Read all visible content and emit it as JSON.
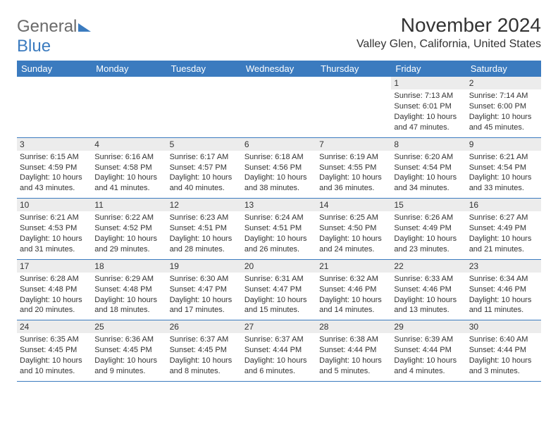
{
  "logo": {
    "word1": "General",
    "word2": "Blue"
  },
  "title": "November 2024",
  "location": "Valley Glen, California, United States",
  "day_headers": [
    "Sunday",
    "Monday",
    "Tuesday",
    "Wednesday",
    "Thursday",
    "Friday",
    "Saturday"
  ],
  "colors": {
    "header_bg": "#3b7bbf",
    "header_text": "#ffffff",
    "cell_text": "#333333",
    "shaded_bg": "#f0f0f0",
    "border": "#3b7bbf"
  },
  "weeks": [
    [
      {
        "empty": true
      },
      {
        "empty": true
      },
      {
        "empty": true
      },
      {
        "empty": true
      },
      {
        "empty": true
      },
      {
        "day": "1",
        "sunrise": "Sunrise: 7:13 AM",
        "sunset": "Sunset: 6:01 PM",
        "daylight": "Daylight: 10 hours and 47 minutes."
      },
      {
        "day": "2",
        "sunrise": "Sunrise: 7:14 AM",
        "sunset": "Sunset: 6:00 PM",
        "daylight": "Daylight: 10 hours and 45 minutes."
      }
    ],
    [
      {
        "day": "3",
        "sunrise": "Sunrise: 6:15 AM",
        "sunset": "Sunset: 4:59 PM",
        "daylight": "Daylight: 10 hours and 43 minutes."
      },
      {
        "day": "4",
        "sunrise": "Sunrise: 6:16 AM",
        "sunset": "Sunset: 4:58 PM",
        "daylight": "Daylight: 10 hours and 41 minutes."
      },
      {
        "day": "5",
        "sunrise": "Sunrise: 6:17 AM",
        "sunset": "Sunset: 4:57 PM",
        "daylight": "Daylight: 10 hours and 40 minutes."
      },
      {
        "day": "6",
        "sunrise": "Sunrise: 6:18 AM",
        "sunset": "Sunset: 4:56 PM",
        "daylight": "Daylight: 10 hours and 38 minutes."
      },
      {
        "day": "7",
        "sunrise": "Sunrise: 6:19 AM",
        "sunset": "Sunset: 4:55 PM",
        "daylight": "Daylight: 10 hours and 36 minutes."
      },
      {
        "day": "8",
        "sunrise": "Sunrise: 6:20 AM",
        "sunset": "Sunset: 4:54 PM",
        "daylight": "Daylight: 10 hours and 34 minutes."
      },
      {
        "day": "9",
        "sunrise": "Sunrise: 6:21 AM",
        "sunset": "Sunset: 4:54 PM",
        "daylight": "Daylight: 10 hours and 33 minutes."
      }
    ],
    [
      {
        "day": "10",
        "sunrise": "Sunrise: 6:21 AM",
        "sunset": "Sunset: 4:53 PM",
        "daylight": "Daylight: 10 hours and 31 minutes."
      },
      {
        "day": "11",
        "sunrise": "Sunrise: 6:22 AM",
        "sunset": "Sunset: 4:52 PM",
        "daylight": "Daylight: 10 hours and 29 minutes."
      },
      {
        "day": "12",
        "sunrise": "Sunrise: 6:23 AM",
        "sunset": "Sunset: 4:51 PM",
        "daylight": "Daylight: 10 hours and 28 minutes."
      },
      {
        "day": "13",
        "sunrise": "Sunrise: 6:24 AM",
        "sunset": "Sunset: 4:51 PM",
        "daylight": "Daylight: 10 hours and 26 minutes."
      },
      {
        "day": "14",
        "sunrise": "Sunrise: 6:25 AM",
        "sunset": "Sunset: 4:50 PM",
        "daylight": "Daylight: 10 hours and 24 minutes."
      },
      {
        "day": "15",
        "sunrise": "Sunrise: 6:26 AM",
        "sunset": "Sunset: 4:49 PM",
        "daylight": "Daylight: 10 hours and 23 minutes."
      },
      {
        "day": "16",
        "sunrise": "Sunrise: 6:27 AM",
        "sunset": "Sunset: 4:49 PM",
        "daylight": "Daylight: 10 hours and 21 minutes."
      }
    ],
    [
      {
        "day": "17",
        "sunrise": "Sunrise: 6:28 AM",
        "sunset": "Sunset: 4:48 PM",
        "daylight": "Daylight: 10 hours and 20 minutes."
      },
      {
        "day": "18",
        "sunrise": "Sunrise: 6:29 AM",
        "sunset": "Sunset: 4:48 PM",
        "daylight": "Daylight: 10 hours and 18 minutes."
      },
      {
        "day": "19",
        "sunrise": "Sunrise: 6:30 AM",
        "sunset": "Sunset: 4:47 PM",
        "daylight": "Daylight: 10 hours and 17 minutes."
      },
      {
        "day": "20",
        "sunrise": "Sunrise: 6:31 AM",
        "sunset": "Sunset: 4:47 PM",
        "daylight": "Daylight: 10 hours and 15 minutes."
      },
      {
        "day": "21",
        "sunrise": "Sunrise: 6:32 AM",
        "sunset": "Sunset: 4:46 PM",
        "daylight": "Daylight: 10 hours and 14 minutes."
      },
      {
        "day": "22",
        "sunrise": "Sunrise: 6:33 AM",
        "sunset": "Sunset: 4:46 PM",
        "daylight": "Daylight: 10 hours and 13 minutes."
      },
      {
        "day": "23",
        "sunrise": "Sunrise: 6:34 AM",
        "sunset": "Sunset: 4:46 PM",
        "daylight": "Daylight: 10 hours and 11 minutes."
      }
    ],
    [
      {
        "day": "24",
        "sunrise": "Sunrise: 6:35 AM",
        "sunset": "Sunset: 4:45 PM",
        "daylight": "Daylight: 10 hours and 10 minutes."
      },
      {
        "day": "25",
        "sunrise": "Sunrise: 6:36 AM",
        "sunset": "Sunset: 4:45 PM",
        "daylight": "Daylight: 10 hours and 9 minutes."
      },
      {
        "day": "26",
        "sunrise": "Sunrise: 6:37 AM",
        "sunset": "Sunset: 4:45 PM",
        "daylight": "Daylight: 10 hours and 8 minutes."
      },
      {
        "day": "27",
        "sunrise": "Sunrise: 6:37 AM",
        "sunset": "Sunset: 4:44 PM",
        "daylight": "Daylight: 10 hours and 6 minutes."
      },
      {
        "day": "28",
        "sunrise": "Sunrise: 6:38 AM",
        "sunset": "Sunset: 4:44 PM",
        "daylight": "Daylight: 10 hours and 5 minutes."
      },
      {
        "day": "29",
        "sunrise": "Sunrise: 6:39 AM",
        "sunset": "Sunset: 4:44 PM",
        "daylight": "Daylight: 10 hours and 4 minutes."
      },
      {
        "day": "30",
        "sunrise": "Sunrise: 6:40 AM",
        "sunset": "Sunset: 4:44 PM",
        "daylight": "Daylight: 10 hours and 3 minutes."
      }
    ]
  ]
}
